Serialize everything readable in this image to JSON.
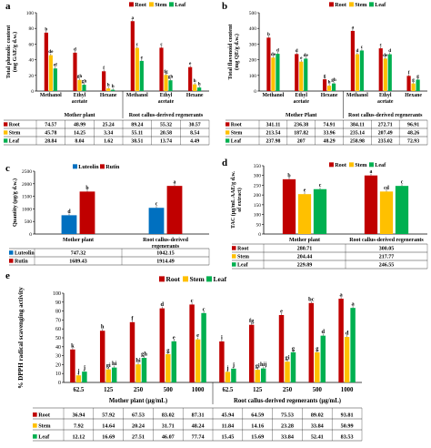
{
  "series_names": [
    "Root",
    "Stem",
    "Leaf"
  ],
  "colors": {
    "root": "#c00000",
    "stem": "#ffc000",
    "leaf": "#00b050",
    "luteolin": "#0070c0",
    "rutin": "#c00000"
  },
  "chart_data": [
    {
      "panel": "a",
      "type": "bar",
      "ylabel": "Total phenolic content (mg GAE/g d.w.)",
      "ylim": [
        0,
        100
      ],
      "yticks": [
        0,
        20,
        40,
        60,
        80,
        100
      ],
      "categories": [
        "Methanol",
        "Ethyl acetate",
        "Hexane",
        "Methanol",
        "Ethyl acetate",
        "Hexane"
      ],
      "category_lines": [
        [
          "Methanol"
        ],
        [
          "Ethyl",
          "acetate"
        ],
        [
          "Hexane"
        ],
        [
          "Methanol"
        ],
        [
          "Ethyl",
          "acetate"
        ],
        [
          "Hexane"
        ]
      ],
      "groups": [
        {
          "label": "Mother plant",
          "span": [
            0,
            2
          ]
        },
        {
          "label": "Root callus-derived regenerants",
          "span": [
            3,
            5
          ]
        }
      ],
      "series": [
        {
          "name": "Root",
          "values": [
            74.57,
            48.99,
            25.24,
            89.24,
            55.32,
            30.57
          ],
          "display": [
            "74.57",
            "48.99",
            "25.24",
            "89.24",
            "55.32",
            "30.57"
          ],
          "letters": [
            "b",
            "d",
            "f",
            "a",
            "c",
            "e"
          ]
        },
        {
          "name": "Stem",
          "values": [
            45.78,
            14.25,
            3.34,
            55.11,
            20.58,
            8.54
          ],
          "display": [
            "45.78",
            "14.25",
            "3.34",
            "55.11",
            "20.58",
            "8.54"
          ],
          "letters": [
            "de",
            "gh",
            "h",
            "c",
            "fg",
            "h"
          ]
        },
        {
          "name": "Leaf",
          "values": [
            28.84,
            8.04,
            1.62,
            38.51,
            13.74,
            4.49
          ],
          "display": [
            "28.84",
            "8.04",
            "1.62",
            "38.51",
            "13.74",
            "4.49"
          ],
          "letters": [
            "ef",
            "gh",
            "h",
            "e",
            "gh",
            "h"
          ]
        }
      ]
    },
    {
      "panel": "b",
      "type": "bar",
      "ylabel": "Total flavonoid content (mg QE/g d.w.)",
      "ylim": [
        0,
        500
      ],
      "yticks": [
        0,
        100,
        200,
        300,
        400,
        500
      ],
      "categories": [
        "Methanol",
        "Ethyl acetate",
        "Hexane",
        "Methanol",
        "Ethyl acetate",
        "Hexane"
      ],
      "category_lines": [
        [
          "Methanol"
        ],
        [
          "Ethyl",
          "acetate"
        ],
        [
          "Hexane"
        ],
        [
          "Methanol"
        ],
        [
          "Ethyl",
          "acetate"
        ],
        [
          "Hexane"
        ]
      ],
      "groups": [
        {
          "label": "Mother Plant",
          "span": [
            0,
            2
          ]
        },
        {
          "label": "Root callus-derived regenerants",
          "span": [
            3,
            5
          ]
        }
      ],
      "series": [
        {
          "name": "Root",
          "values": [
            341.11,
            236.38,
            74.91,
            384.11,
            272.71,
            96.91
          ],
          "display": [
            "341.11",
            "236.38",
            "74.91",
            "384.11",
            "272.71",
            "96.91"
          ],
          "letters": [
            "b",
            "d",
            "g",
            "a",
            "c",
            "f"
          ]
        },
        {
          "name": "Stem",
          "values": [
            213.54,
            187.82,
            33.96,
            235.14,
            207.49,
            48.26
          ],
          "display": [
            "213.54",
            "187.82",
            "33.96",
            "235.14",
            "207.49",
            "48.26"
          ],
          "letters": [
            "de",
            "e",
            "h",
            "d",
            "de",
            "g"
          ]
        },
        {
          "name": "Leaf",
          "values": [
            237.98,
            207.0,
            48.29,
            258.98,
            235.02,
            72.93
          ],
          "display": [
            "237.98",
            "207",
            "48.29",
            "258.98",
            "235.02",
            "72.93"
          ],
          "letters": [
            "d",
            "de",
            "gh",
            "c",
            "d",
            "g"
          ]
        }
      ]
    },
    {
      "panel": "c",
      "type": "bar",
      "ylabel": "Quantity (µg/g d.w.)",
      "ylim": [
        0,
        2500
      ],
      "yticks": [
        0,
        500,
        1000,
        1500,
        2000,
        2500
      ],
      "categories": [
        "Mother plant",
        "Root callus-derived regenerants"
      ],
      "category_lines": [
        [
          "Mother plant"
        ],
        [
          "Root callus-derived",
          "regenerants"
        ]
      ],
      "groups": [],
      "series": [
        {
          "name": "Luteolin",
          "values": [
            747.32,
            1042.15
          ],
          "display": [
            "747.32",
            "1042.15"
          ],
          "letters": [
            "d",
            "c"
          ]
        },
        {
          "name": "Rutin",
          "values": [
            1689.43,
            1914.49
          ],
          "display": [
            "1689.43",
            "1914.49"
          ],
          "letters": [
            "b",
            "a"
          ]
        }
      ]
    },
    {
      "panel": "d",
      "type": "bar",
      "ylabel": "TAC (µg/mL AAE/g d.w. of extract)",
      "ylim": [
        0,
        350
      ],
      "yticks": [
        0,
        50,
        100,
        150,
        200,
        250,
        300,
        350
      ],
      "categories": [
        "Mother plant",
        "Root callus-derived regenerants"
      ],
      "category_lines": [
        [
          "Mother plant"
        ],
        [
          "Root callus-derived regenerants"
        ]
      ],
      "groups": [],
      "series": [
        {
          "name": "Root",
          "values": [
            280.71,
            300.05
          ],
          "display": [
            "280.71",
            "300.05"
          ],
          "letters": [
            "b",
            "a"
          ]
        },
        {
          "name": "Stem",
          "values": [
            204.44,
            217.77
          ],
          "display": [
            "204.44",
            "217.77"
          ],
          "letters": [
            "e",
            "cd"
          ]
        },
        {
          "name": "Leaf",
          "values": [
            229.89,
            246.55
          ],
          "display": [
            "229.89",
            "246.55"
          ],
          "letters": [
            "c",
            "c"
          ]
        }
      ]
    },
    {
      "panel": "e",
      "type": "bar",
      "ylabel": "% DPPH radical scavenging activity",
      "ylim": [
        0,
        100
      ],
      "yticks": [
        0,
        10,
        20,
        30,
        40,
        50,
        60,
        70,
        80,
        90,
        100
      ],
      "categories": [
        "62.5",
        "125",
        "250",
        "500",
        "1000",
        "62.5",
        "125",
        "250",
        "500",
        "1000"
      ],
      "category_lines": [
        [
          "62.5"
        ],
        [
          "125"
        ],
        [
          "250"
        ],
        [
          "500"
        ],
        [
          "1000"
        ],
        [
          "62.5"
        ],
        [
          "125"
        ],
        [
          "250"
        ],
        [
          "500"
        ],
        [
          "1000"
        ]
      ],
      "groups": [
        {
          "label": "Mother plant (µg/mL)",
          "span": [
            0,
            4
          ]
        },
        {
          "label": "Root callus-derived regenerants (µg/mL)",
          "span": [
            5,
            9
          ]
        }
      ],
      "series": [
        {
          "name": "Root",
          "values": [
            36.94,
            57.92,
            67.53,
            83.02,
            87.31,
            45.94,
            64.59,
            75.53,
            89.02,
            93.81
          ],
          "display": [
            "36.94",
            "57.92",
            "67.53",
            "83.02",
            "87.31",
            "45.94",
            "64.59",
            "75.53",
            "89.02",
            "93.81"
          ],
          "letters": [
            "k",
            "h",
            "f",
            "d",
            "c",
            "i",
            "fg",
            "e",
            "bc",
            "a"
          ]
        },
        {
          "name": "Stem",
          "values": [
            7.92,
            14.64,
            20.24,
            31.71,
            48.24,
            11.84,
            14.16,
            23.28,
            33.84,
            50.99
          ],
          "display": [
            "7.92",
            "14.64",
            "20.24",
            "31.71",
            "48.24",
            "11.84",
            "14.16",
            "23.28",
            "33.84",
            "50.99"
          ],
          "letters": [
            "j",
            "gi",
            "hi",
            "g",
            "e",
            "j",
            "gi",
            "gi",
            "g",
            "d"
          ]
        },
        {
          "name": "Leaf",
          "values": [
            12.12,
            16.69,
            27.51,
            46.07,
            77.74,
            15.45,
            15.69,
            33.84,
            52.41,
            83.53
          ],
          "display": [
            "12.12",
            "16.69",
            "27.51",
            "46.07",
            "77.74",
            "15.45",
            "15.69",
            "33.84",
            "52.41",
            "83.53"
          ],
          "letters": [
            "j",
            "hi",
            "gh",
            "e",
            "c",
            "j",
            "hij",
            "g",
            "d",
            "a"
          ]
        }
      ]
    }
  ]
}
